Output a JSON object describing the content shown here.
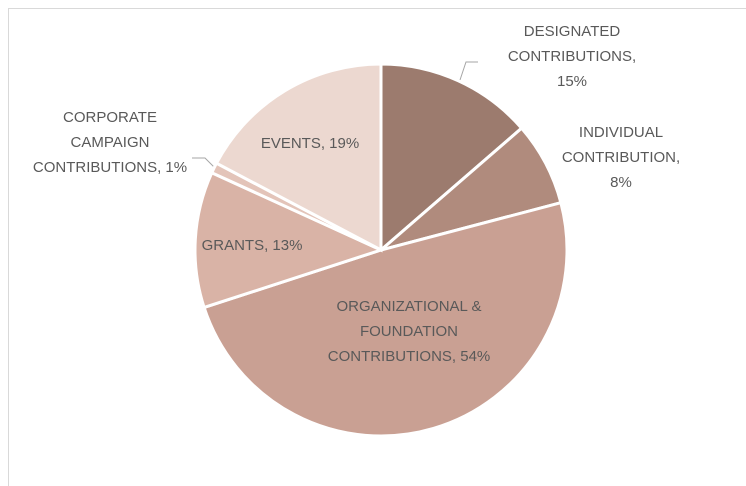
{
  "chart_data": {
    "type": "pie",
    "values": [
      15,
      8,
      54,
      13,
      1,
      19
    ],
    "value_labels": [
      [
        "DESIGNATED",
        "CONTRIBUTIONS,",
        "15%"
      ],
      [
        "INDIVIDUAL",
        "CONTRIBUTION,",
        "8%"
      ],
      [
        "ORGANIZATIONAL &",
        "FOUNDATION",
        "CONTRIBUTIONS, 54%"
      ],
      [
        "GRANTS, 13%"
      ],
      [
        "CORPORATE",
        "CAMPAIGN",
        "CONTRIBUTIONS, 1%"
      ],
      [
        "EVENTS, 19%"
      ]
    ],
    "colors": [
      "#9c7b6e",
      "#b08b7d",
      "#c9a093",
      "#d9b3a6",
      "#e3c4b9",
      "#ecd8d0"
    ]
  }
}
